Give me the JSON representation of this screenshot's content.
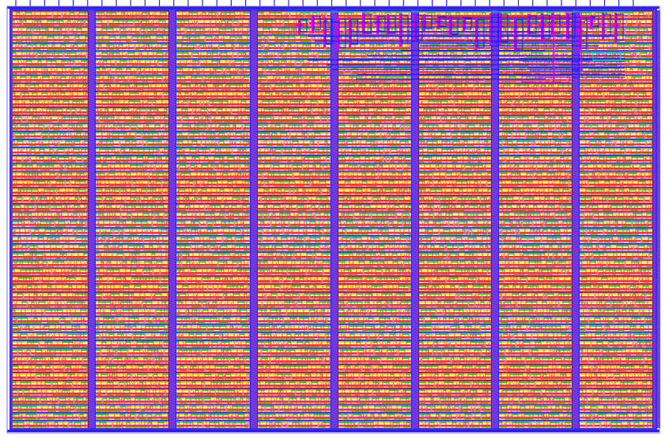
{
  "layout_view": {
    "colors": {
      "background": "#ffffff",
      "core_border": "#3d2fe0",
      "stripe_column": "#6a2fd8",
      "stripe_hatch": "#8f5cf0",
      "row_power_rail": "#2a1fe6",
      "cell_poly": "#ff2a1a",
      "cell_diffusion_green": "#39d400",
      "cell_diffusion_yellow": "#f0e000",
      "cell_contact_cyan": "#00d8e8",
      "cell_metal_pink": "#ff33cc",
      "cell_outline_red": "#e01010",
      "routing_magenta": "#e000e0",
      "routing_blue": "#1a18ff",
      "routing_cyan": "#00c8ff",
      "io_pin": "#2a1fe6"
    },
    "cell_row_count": 52,
    "stripe_column_count": 8,
    "io_pin_count_top": 44,
    "layer_legend_visible": false
  }
}
